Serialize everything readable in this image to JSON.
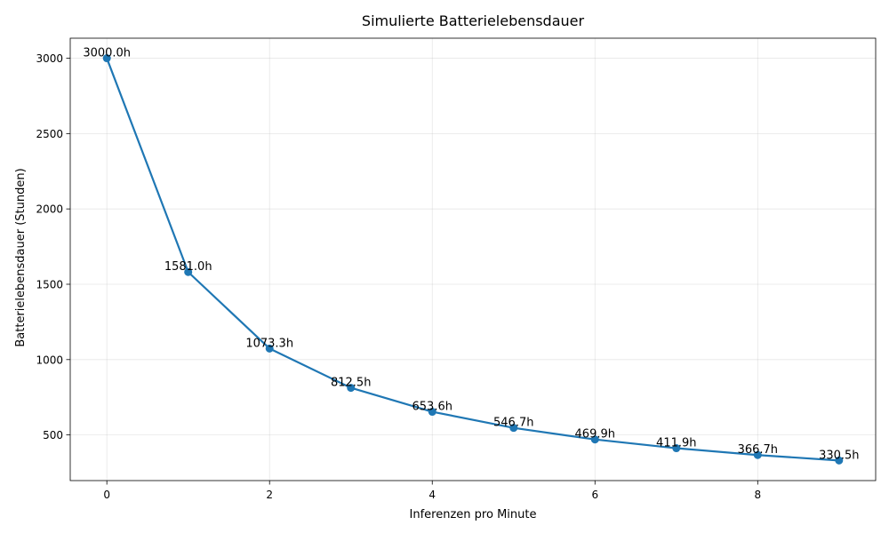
{
  "chart_data": {
    "type": "line",
    "title": "Simulierte Batterielebensdauer",
    "xlabel": "Inferenzen pro Minute",
    "ylabel": "Batterielebensdauer (Stunden)",
    "x": [
      0,
      1,
      2,
      3,
      4,
      5,
      6,
      7,
      8,
      9
    ],
    "series": [
      {
        "values": [
          3000.0,
          1581.0,
          1073.3,
          812.5,
          653.6,
          546.7,
          469.9,
          411.9,
          366.7,
          330.5
        ],
        "color": "#1f77b4",
        "marker": "circle"
      }
    ],
    "data_labels": [
      "3000.0h",
      "1581.0h",
      "1073.3h",
      "812.5h",
      "653.6h",
      "546.7h",
      "469.9h",
      "411.9h",
      "366.7h",
      "330.5h"
    ],
    "xticks": [
      0,
      2,
      4,
      6,
      8
    ],
    "yticks": [
      500,
      1000,
      1500,
      2000,
      2500,
      3000
    ],
    "xlim": [
      -0.45,
      9.45
    ],
    "ylim": [
      197,
      3133
    ],
    "grid": true
  }
}
